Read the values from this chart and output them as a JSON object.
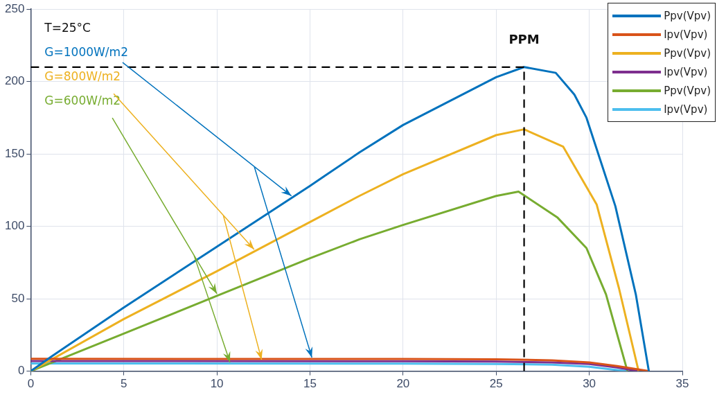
{
  "chart_data": {
    "type": "line",
    "xlim": [
      0,
      35
    ],
    "ylim": [
      0,
      250
    ],
    "xticks": [
      0,
      5,
      10,
      15,
      20,
      25,
      30,
      35
    ],
    "yticks": [
      0,
      50,
      100,
      150,
      200,
      250
    ],
    "grid": true,
    "legend": "top right",
    "marker": "none",
    "line_style": "solid",
    "series": [
      {
        "name": "Ppv(Vpv)",
        "color": "#0072bd",
        "x": [
          0,
          1.1,
          5,
          10,
          15,
          17.65,
          20,
          25,
          26.5,
          28.2,
          29.2,
          29.85,
          31.4,
          32.5,
          33.2
        ],
        "values": [
          0,
          10,
          44,
          86,
          128,
          151,
          170,
          203,
          210,
          206,
          191,
          175,
          114,
          53,
          0
        ]
      },
      {
        "name": "Ipv(Vpv)",
        "color": "#d95319",
        "x": [
          0,
          20,
          25,
          28,
          30,
          31.5,
          33.2
        ],
        "values": [
          8.5,
          8.4,
          8.2,
          7.5,
          6,
          3.5,
          0
        ]
      },
      {
        "name": "Ppv(Vpv)",
        "color": "#edb120",
        "x": [
          0,
          5,
          10,
          15,
          17.65,
          20,
          25,
          26.5,
          28.6,
          30.4,
          31.6,
          32.65
        ],
        "values": [
          0,
          36,
          69,
          103,
          121,
          136,
          163,
          167,
          155,
          115,
          57,
          0
        ]
      },
      {
        "name": "Ipv(Vpv)",
        "color": "#7e2f8e",
        "x": [
          0,
          20,
          25,
          28,
          30,
          31.5,
          32.65
        ],
        "values": [
          7,
          6.9,
          6.6,
          6,
          5,
          2.5,
          0
        ]
      },
      {
        "name": "Ppv(Vpv)",
        "color": "#77ac30",
        "x": [
          0,
          5,
          10,
          15,
          17.65,
          20,
          25,
          26.2,
          28.3,
          29.85,
          30.9,
          32.05
        ],
        "values": [
          0,
          26,
          52,
          78,
          91,
          101,
          121,
          124,
          106,
          85,
          53,
          0
        ]
      },
      {
        "name": "Ipv(Vpv)",
        "color": "#4dbeee",
        "x": [
          0,
          20,
          25,
          28,
          30,
          31,
          32.05
        ],
        "values": [
          5.3,
          5.2,
          5,
          4.5,
          3,
          1.5,
          0
        ]
      }
    ],
    "ref_lines": [
      {
        "axis": "y",
        "value": 210,
        "color": "#000000",
        "line_style": "dashed"
      },
      {
        "axis": "x",
        "value": 26.5,
        "color": "#000000",
        "line_style": "dashed"
      }
    ],
    "annotations": [
      "PPM",
      "T=25°C",
      "G=1000W/m2",
      "G=800W/m2",
      "G=600W/m2"
    ]
  }
}
